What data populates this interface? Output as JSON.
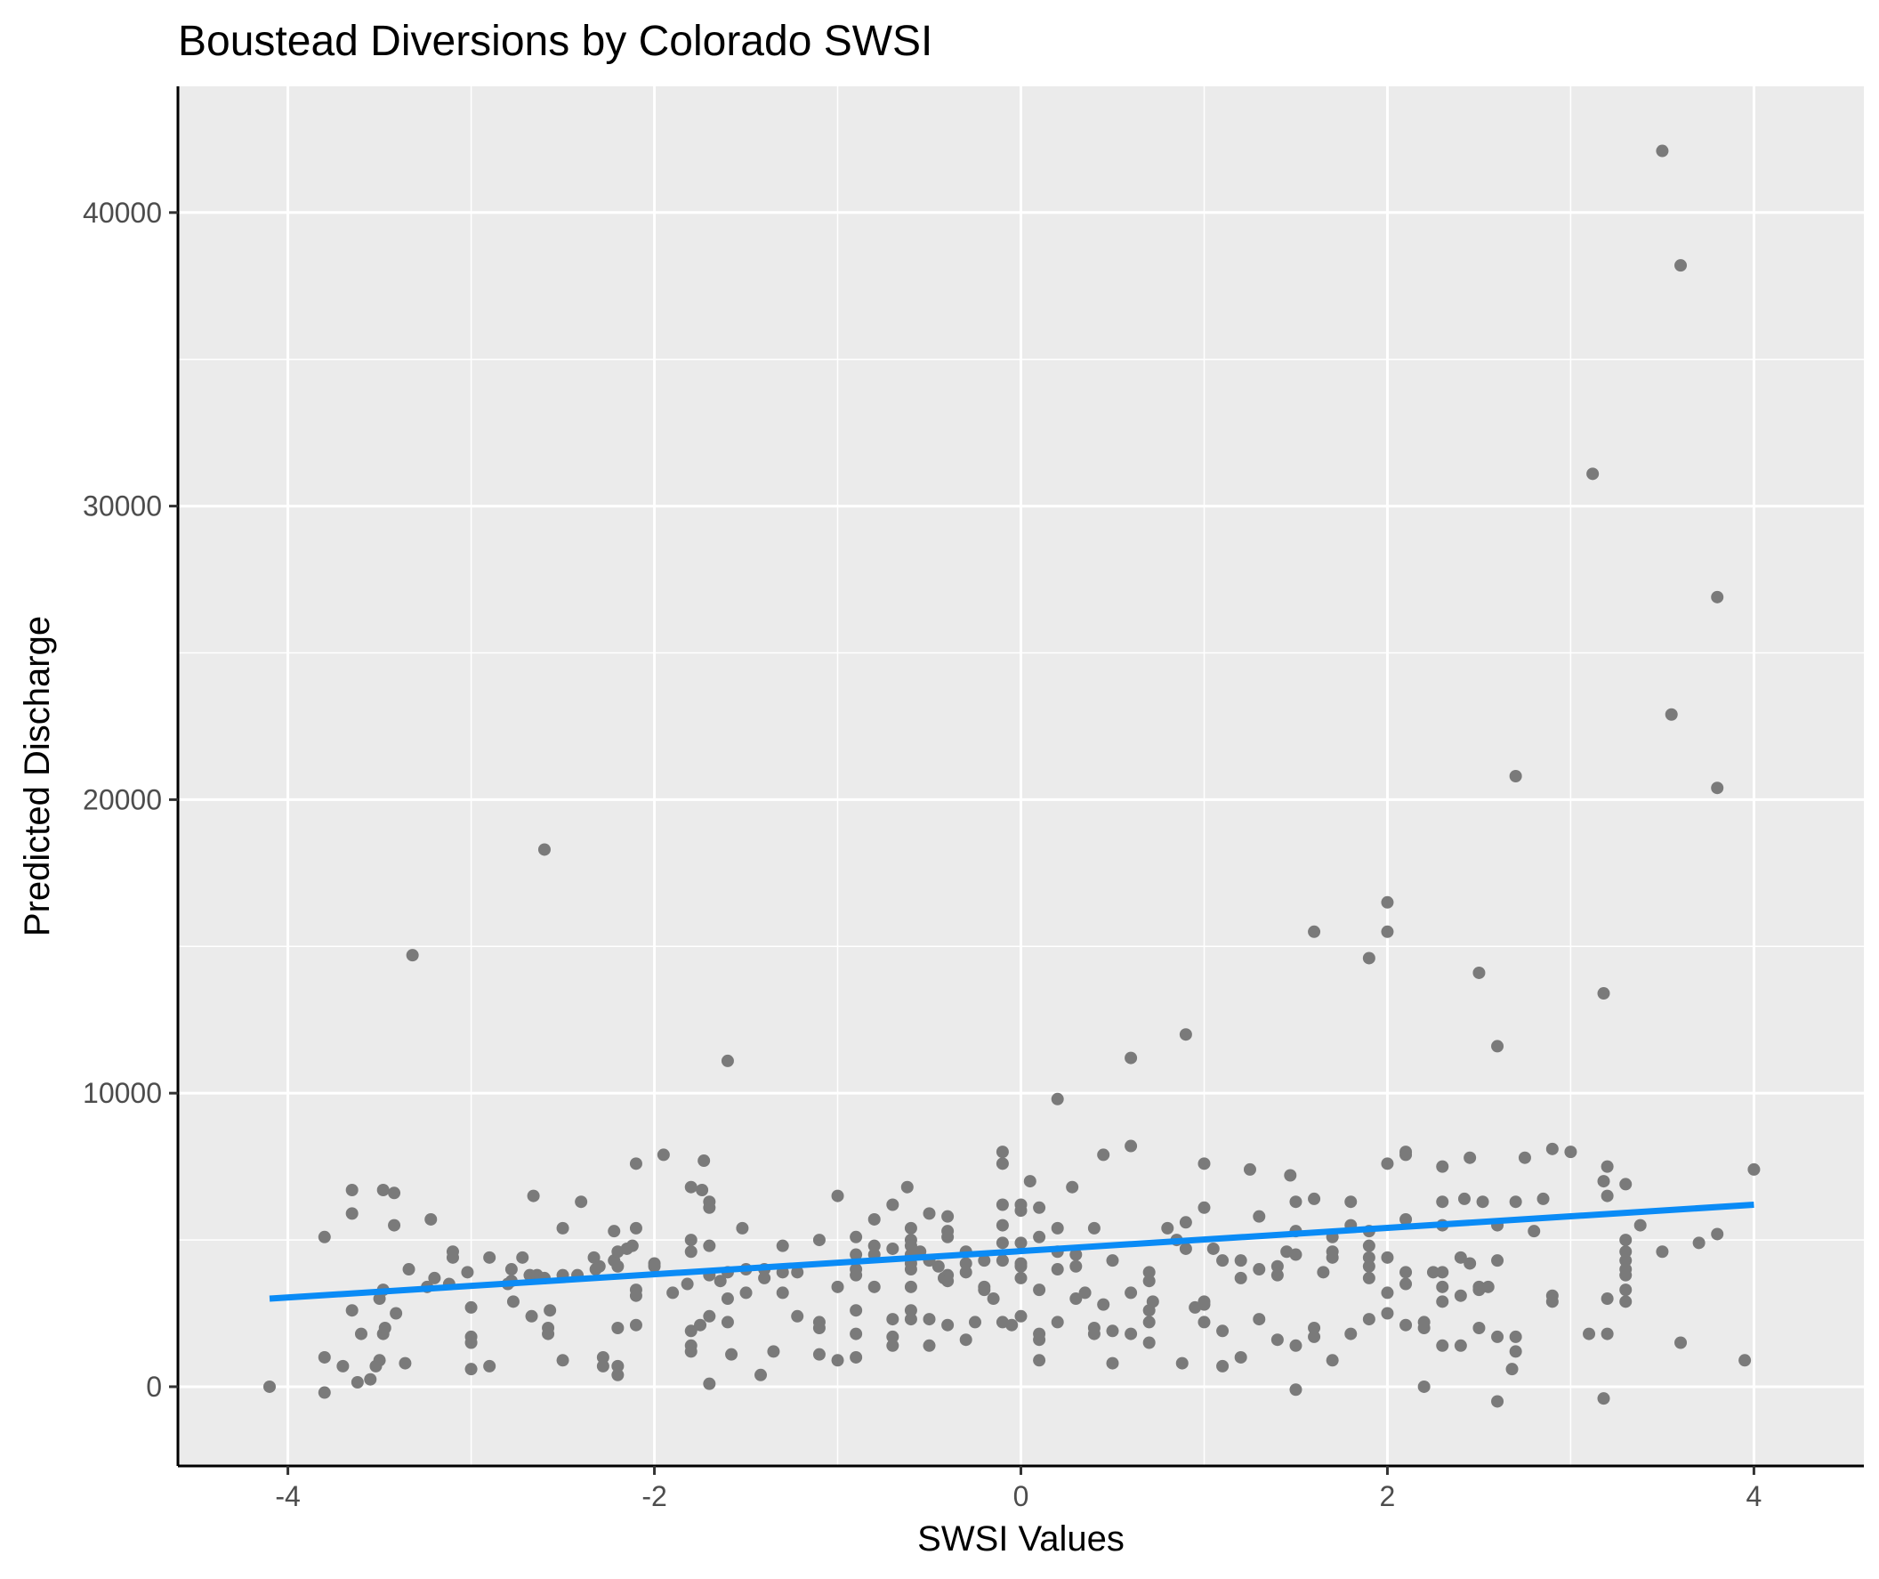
{
  "chart_data": {
    "type": "scatter",
    "title": "Boustead Diversions by Colorado SWSI",
    "xlabel": "SWSI Values",
    "ylabel": "Predicted Discharge",
    "xlim": [
      -4.6,
      4.6
    ],
    "ylim": [
      -2700,
      44300
    ],
    "x_ticks": [
      -4,
      -2,
      0,
      2,
      4
    ],
    "x_tick_labels": [
      "-4",
      "-2",
      "0",
      "2",
      "4"
    ],
    "y_ticks": [
      0,
      10000,
      20000,
      30000,
      40000
    ],
    "y_tick_labels": [
      "0",
      "10000",
      "20000",
      "30000",
      "40000"
    ],
    "grid": true,
    "legend": "none",
    "colors": {
      "panel_background": "#ebebeb",
      "grid": "#ffffff",
      "points": "#7a7a7a",
      "trend_line": "#0a8bf6",
      "axis_line": "#000000"
    },
    "trend_line": {
      "x": [
        -4.1,
        4.0
      ],
      "y": [
        3000,
        6200
      ]
    },
    "points": [
      [
        -4.1,
        0
      ],
      [
        -3.8,
        -200
      ],
      [
        -3.8,
        1000
      ],
      [
        -3.8,
        5100
      ],
      [
        -3.7,
        700
      ],
      [
        -3.65,
        5900
      ],
      [
        -3.65,
        6700
      ],
      [
        -3.65,
        2600
      ],
      [
        -3.62,
        150
      ],
      [
        -3.6,
        1800
      ],
      [
        -3.55,
        250
      ],
      [
        -3.52,
        700
      ],
      [
        -3.5,
        900
      ],
      [
        -3.5,
        3000
      ],
      [
        -3.48,
        1800
      ],
      [
        -3.48,
        6700
      ],
      [
        -3.48,
        3300
      ],
      [
        -3.47,
        2000
      ],
      [
        -3.42,
        6600
      ],
      [
        -3.42,
        5500
      ],
      [
        -3.41,
        2500
      ],
      [
        -3.36,
        800
      ],
      [
        -3.34,
        4000
      ],
      [
        -3.32,
        14700
      ],
      [
        -3.24,
        3400
      ],
      [
        -3.22,
        5700
      ],
      [
        -3.2,
        3700
      ],
      [
        -3.12,
        3500
      ],
      [
        -3.1,
        4600
      ],
      [
        -3.1,
        4400
      ],
      [
        -3.02,
        3900
      ],
      [
        -3.0,
        2700
      ],
      [
        -3.0,
        1700
      ],
      [
        -3.0,
        1500
      ],
      [
        -3.0,
        600
      ],
      [
        -2.9,
        4400
      ],
      [
        -2.9,
        700
      ],
      [
        -2.8,
        3500
      ],
      [
        -2.78,
        3600
      ],
      [
        -2.78,
        4000
      ],
      [
        -2.77,
        2900
      ],
      [
        -2.72,
        4400
      ],
      [
        -2.68,
        3800
      ],
      [
        -2.67,
        2400
      ],
      [
        -2.66,
        6500
      ],
      [
        -2.64,
        3800
      ],
      [
        -2.6,
        3700
      ],
      [
        -2.6,
        18300
      ],
      [
        -2.58,
        1800
      ],
      [
        -2.58,
        2000
      ],
      [
        -2.57,
        2600
      ],
      [
        -2.5,
        5400
      ],
      [
        -2.5,
        3800
      ],
      [
        -2.5,
        900
      ],
      [
        -2.42,
        3800
      ],
      [
        -2.4,
        6300
      ],
      [
        -2.33,
        4400
      ],
      [
        -2.32,
        4000
      ],
      [
        -2.3,
        4100
      ],
      [
        -2.28,
        700
      ],
      [
        -2.28,
        1000
      ],
      [
        -2.22,
        4300
      ],
      [
        -2.22,
        5300
      ],
      [
        -2.2,
        4100
      ],
      [
        -2.2,
        2000
      ],
      [
        -2.2,
        700
      ],
      [
        -2.2,
        400
      ],
      [
        -2.2,
        4600
      ],
      [
        -2.15,
        4700
      ],
      [
        -2.12,
        4800
      ],
      [
        -2.1,
        5400
      ],
      [
        -2.1,
        7600
      ],
      [
        -2.1,
        3300
      ],
      [
        -2.1,
        3100
      ],
      [
        -2.1,
        2100
      ],
      [
        -2.0,
        4100
      ],
      [
        -2.0,
        4200
      ],
      [
        -1.95,
        7900
      ],
      [
        -1.9,
        3200
      ],
      [
        -1.82,
        3500
      ],
      [
        -1.8,
        6800
      ],
      [
        -1.8,
        5000
      ],
      [
        -1.8,
        4600
      ],
      [
        -1.8,
        1400
      ],
      [
        -1.8,
        1200
      ],
      [
        -1.8,
        1900
      ],
      [
        -1.75,
        2100
      ],
      [
        -1.74,
        6700
      ],
      [
        -1.73,
        7700
      ],
      [
        -1.7,
        6300
      ],
      [
        -1.7,
        6100
      ],
      [
        -1.7,
        4800
      ],
      [
        -1.7,
        3800
      ],
      [
        -1.7,
        2400
      ],
      [
        -1.7,
        100
      ],
      [
        -1.64,
        3600
      ],
      [
        -1.6,
        11100
      ],
      [
        -1.6,
        3900
      ],
      [
        -1.6,
        3000
      ],
      [
        -1.6,
        2200
      ],
      [
        -1.58,
        1100
      ],
      [
        -1.52,
        5400
      ],
      [
        -1.5,
        3200
      ],
      [
        -1.5,
        4000
      ],
      [
        -1.42,
        400
      ],
      [
        -1.4,
        3700
      ],
      [
        -1.4,
        4000
      ],
      [
        -1.35,
        1200
      ],
      [
        -1.3,
        4800
      ],
      [
        -1.3,
        3900
      ],
      [
        -1.3,
        3200
      ],
      [
        -1.22,
        3900
      ],
      [
        -1.22,
        2400
      ],
      [
        -1.1,
        5000
      ],
      [
        -1.1,
        2200
      ],
      [
        -1.1,
        2000
      ],
      [
        -1.1,
        1100
      ],
      [
        -1.0,
        6500
      ],
      [
        -1.0,
        900
      ],
      [
        -1.0,
        3400
      ],
      [
        -0.9,
        5100
      ],
      [
        -0.9,
        4500
      ],
      [
        -0.9,
        4000
      ],
      [
        -0.9,
        3800
      ],
      [
        -0.9,
        2600
      ],
      [
        -0.9,
        1800
      ],
      [
        -0.9,
        1000
      ],
      [
        -0.8,
        5700
      ],
      [
        -0.8,
        4800
      ],
      [
        -0.8,
        4500
      ],
      [
        -0.8,
        3400
      ],
      [
        -0.7,
        6200
      ],
      [
        -0.7,
        4700
      ],
      [
        -0.7,
        2300
      ],
      [
        -0.7,
        1700
      ],
      [
        -0.7,
        1400
      ],
      [
        -0.62,
        6800
      ],
      [
        -0.6,
        5400
      ],
      [
        -0.6,
        5000
      ],
      [
        -0.6,
        4800
      ],
      [
        -0.6,
        4500
      ],
      [
        -0.6,
        4200
      ],
      [
        -0.6,
        4000
      ],
      [
        -0.6,
        3400
      ],
      [
        -0.6,
        2600
      ],
      [
        -0.6,
        2300
      ],
      [
        -0.55,
        4600
      ],
      [
        -0.5,
        5900
      ],
      [
        -0.5,
        4300
      ],
      [
        -0.5,
        2300
      ],
      [
        -0.5,
        1400
      ],
      [
        -0.45,
        4100
      ],
      [
        -0.42,
        3700
      ],
      [
        -0.4,
        5800
      ],
      [
        -0.4,
        5300
      ],
      [
        -0.4,
        5100
      ],
      [
        -0.4,
        3800
      ],
      [
        -0.4,
        3600
      ],
      [
        -0.4,
        2100
      ],
      [
        -0.3,
        4600
      ],
      [
        -0.3,
        4200
      ],
      [
        -0.3,
        3900
      ],
      [
        -0.3,
        1600
      ],
      [
        -0.25,
        2200
      ],
      [
        -0.2,
        4300
      ],
      [
        -0.2,
        3400
      ],
      [
        -0.2,
        3300
      ],
      [
        -0.15,
        3000
      ],
      [
        -0.1,
        8000
      ],
      [
        -0.1,
        7600
      ],
      [
        -0.1,
        6200
      ],
      [
        -0.1,
        5500
      ],
      [
        -0.1,
        4900
      ],
      [
        -0.1,
        4300
      ],
      [
        -0.1,
        2200
      ],
      [
        -0.05,
        2100
      ],
      [
        0.0,
        6200
      ],
      [
        0.0,
        6000
      ],
      [
        0.0,
        4900
      ],
      [
        0.0,
        4200
      ],
      [
        0.0,
        4100
      ],
      [
        0.0,
        3700
      ],
      [
        0.0,
        2400
      ],
      [
        0.05,
        7000
      ],
      [
        0.1,
        6100
      ],
      [
        0.1,
        5100
      ],
      [
        0.1,
        3300
      ],
      [
        0.1,
        1800
      ],
      [
        0.1,
        1600
      ],
      [
        0.1,
        900
      ],
      [
        0.2,
        9800
      ],
      [
        0.2,
        5400
      ],
      [
        0.2,
        4600
      ],
      [
        0.2,
        4000
      ],
      [
        0.2,
        2200
      ],
      [
        0.28,
        6800
      ],
      [
        0.3,
        4500
      ],
      [
        0.3,
        4100
      ],
      [
        0.3,
        3000
      ],
      [
        0.35,
        3200
      ],
      [
        0.4,
        5400
      ],
      [
        0.4,
        2000
      ],
      [
        0.4,
        1800
      ],
      [
        0.45,
        7900
      ],
      [
        0.45,
        2800
      ],
      [
        0.5,
        4300
      ],
      [
        0.5,
        1900
      ],
      [
        0.5,
        800
      ],
      [
        0.6,
        11200
      ],
      [
        0.6,
        8200
      ],
      [
        0.6,
        3200
      ],
      [
        0.6,
        1800
      ],
      [
        0.7,
        3900
      ],
      [
        0.7,
        3600
      ],
      [
        0.7,
        2600
      ],
      [
        0.7,
        2200
      ],
      [
        0.7,
        1500
      ],
      [
        0.72,
        2900
      ],
      [
        0.8,
        5400
      ],
      [
        0.85,
        5000
      ],
      [
        0.88,
        800
      ],
      [
        0.9,
        12000
      ],
      [
        0.9,
        5600
      ],
      [
        0.9,
        4700
      ],
      [
        0.95,
        2700
      ],
      [
        1.0,
        7600
      ],
      [
        1.0,
        6100
      ],
      [
        1.0,
        2900
      ],
      [
        1.0,
        2800
      ],
      [
        1.0,
        2200
      ],
      [
        1.05,
        4700
      ],
      [
        1.1,
        4300
      ],
      [
        1.1,
        1900
      ],
      [
        1.1,
        700
      ],
      [
        1.2,
        4300
      ],
      [
        1.2,
        3700
      ],
      [
        1.2,
        1000
      ],
      [
        1.25,
        7400
      ],
      [
        1.3,
        5800
      ],
      [
        1.3,
        4000
      ],
      [
        1.3,
        2300
      ],
      [
        1.4,
        4100
      ],
      [
        1.4,
        3800
      ],
      [
        1.4,
        1600
      ],
      [
        1.45,
        4600
      ],
      [
        1.47,
        7200
      ],
      [
        1.5,
        6300
      ],
      [
        1.5,
        5300
      ],
      [
        1.5,
        4500
      ],
      [
        1.5,
        1400
      ],
      [
        1.5,
        -100
      ],
      [
        1.6,
        15500
      ],
      [
        1.6,
        6400
      ],
      [
        1.6,
        2000
      ],
      [
        1.6,
        1700
      ],
      [
        1.65,
        3900
      ],
      [
        1.7,
        5100
      ],
      [
        1.7,
        4600
      ],
      [
        1.7,
        4400
      ],
      [
        1.7,
        900
      ],
      [
        1.8,
        6300
      ],
      [
        1.8,
        5500
      ],
      [
        1.8,
        1800
      ],
      [
        1.9,
        14600
      ],
      [
        1.9,
        5300
      ],
      [
        1.9,
        4800
      ],
      [
        1.9,
        4400
      ],
      [
        1.9,
        4100
      ],
      [
        1.9,
        3700
      ],
      [
        1.9,
        2300
      ],
      [
        2.0,
        16500
      ],
      [
        2.0,
        15500
      ],
      [
        2.0,
        7600
      ],
      [
        2.0,
        4400
      ],
      [
        2.0,
        3200
      ],
      [
        2.0,
        2500
      ],
      [
        2.1,
        8000
      ],
      [
        2.1,
        7900
      ],
      [
        2.1,
        5700
      ],
      [
        2.1,
        3900
      ],
      [
        2.1,
        3500
      ],
      [
        2.1,
        2100
      ],
      [
        2.2,
        2200
      ],
      [
        2.2,
        2000
      ],
      [
        2.2,
        0
      ],
      [
        2.25,
        3900
      ],
      [
        2.3,
        7500
      ],
      [
        2.3,
        6300
      ],
      [
        2.3,
        5500
      ],
      [
        2.3,
        3900
      ],
      [
        2.3,
        3400
      ],
      [
        2.3,
        2900
      ],
      [
        2.3,
        1400
      ],
      [
        2.4,
        4400
      ],
      [
        2.4,
        3100
      ],
      [
        2.4,
        1400
      ],
      [
        2.42,
        6400
      ],
      [
        2.45,
        7800
      ],
      [
        2.45,
        4200
      ],
      [
        2.5,
        14100
      ],
      [
        2.5,
        3400
      ],
      [
        2.5,
        3300
      ],
      [
        2.5,
        2000
      ],
      [
        2.52,
        6300
      ],
      [
        2.55,
        3400
      ],
      [
        2.6,
        11600
      ],
      [
        2.6,
        5500
      ],
      [
        2.6,
        4300
      ],
      [
        2.6,
        1700
      ],
      [
        2.6,
        -500
      ],
      [
        2.7,
        20800
      ],
      [
        2.7,
        6300
      ],
      [
        2.7,
        1700
      ],
      [
        2.7,
        1200
      ],
      [
        2.68,
        600
      ],
      [
        2.75,
        7800
      ],
      [
        2.8,
        5300
      ],
      [
        2.85,
        6400
      ],
      [
        2.9,
        8100
      ],
      [
        2.9,
        3100
      ],
      [
        2.9,
        2900
      ],
      [
        3.0,
        8000
      ],
      [
        3.1,
        1800
      ],
      [
        3.12,
        31100
      ],
      [
        3.18,
        13400
      ],
      [
        3.18,
        7000
      ],
      [
        3.2,
        7500
      ],
      [
        3.2,
        6500
      ],
      [
        3.2,
        3000
      ],
      [
        3.2,
        1800
      ],
      [
        3.18,
        -400
      ],
      [
        3.3,
        6900
      ],
      [
        3.3,
        5000
      ],
      [
        3.3,
        4600
      ],
      [
        3.3,
        4300
      ],
      [
        3.3,
        4000
      ],
      [
        3.3,
        3800
      ],
      [
        3.3,
        3300
      ],
      [
        3.3,
        2900
      ],
      [
        3.38,
        5500
      ],
      [
        3.5,
        42100
      ],
      [
        3.5,
        4600
      ],
      [
        3.55,
        22900
      ],
      [
        3.6,
        38200
      ],
      [
        3.6,
        1500
      ],
      [
        3.7,
        4900
      ],
      [
        3.8,
        26900
      ],
      [
        3.8,
        20400
      ],
      [
        3.8,
        5200
      ],
      [
        3.95,
        900
      ],
      [
        4.0,
        7400
      ]
    ]
  }
}
